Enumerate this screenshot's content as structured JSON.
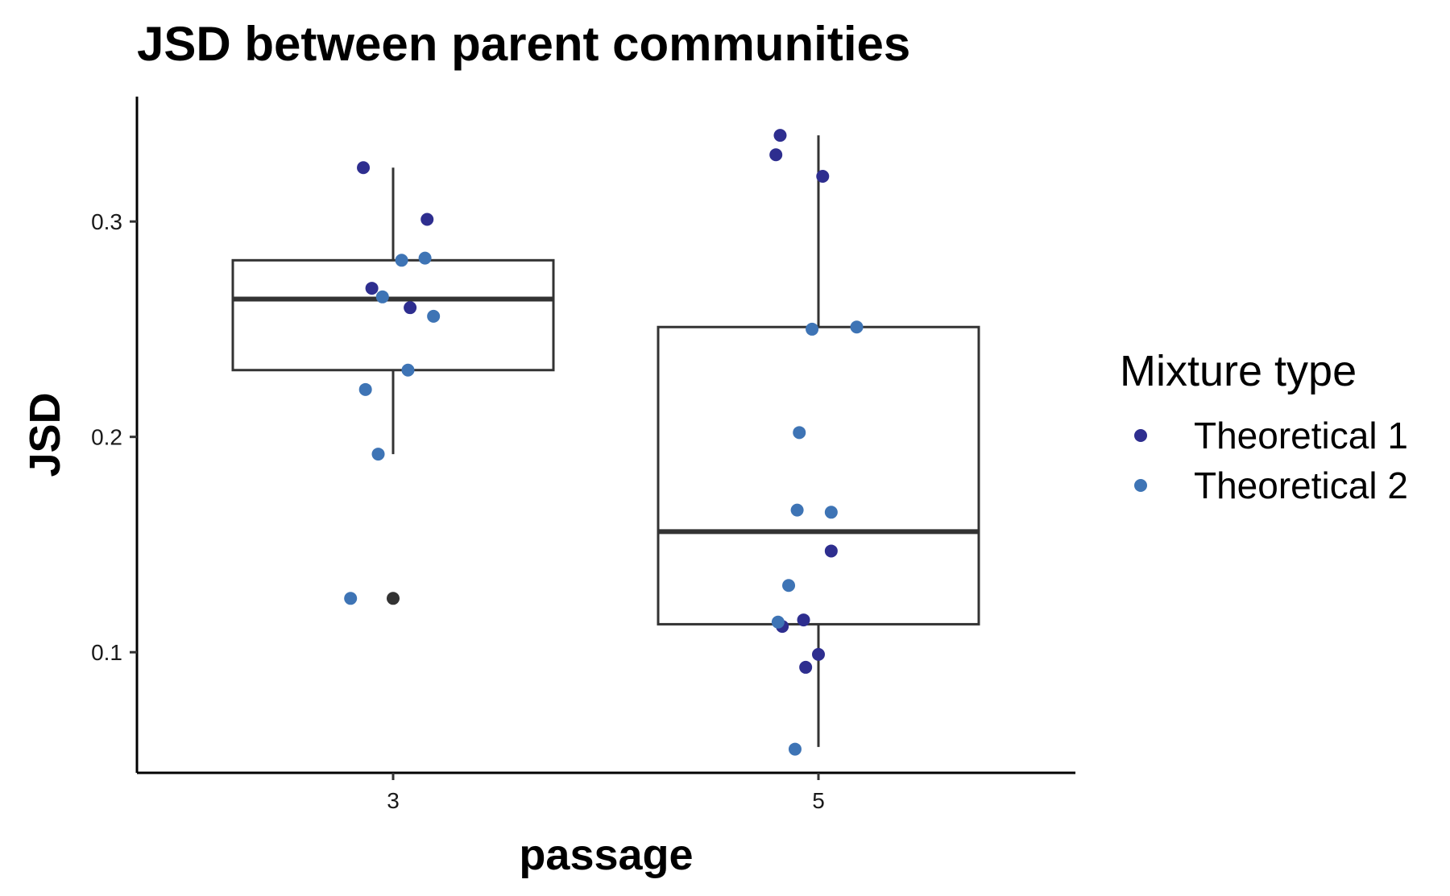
{
  "chart_data": {
    "type": "box",
    "title": "JSD between parent communities",
    "xlabel": "passage",
    "ylabel": "JSD",
    "categories": [
      "3",
      "5"
    ],
    "ylim": [
      0.044,
      0.358
    ],
    "yticks": [
      0.1,
      0.2,
      0.3
    ],
    "ytick_labels": [
      "0.1",
      "0.2",
      "0.3"
    ],
    "grid": false,
    "legend": {
      "title": "Mixture type",
      "position": "right",
      "entries": [
        {
          "name": "Theoretical 1",
          "color": "#2e2e8f"
        },
        {
          "name": "Theoretical 2",
          "color": "#3e74b5"
        }
      ]
    },
    "boxes": [
      {
        "category": "3",
        "whisker_low": 0.192,
        "q1": 0.231,
        "median": 0.264,
        "q3": 0.282,
        "whisker_high": 0.325,
        "outliers": [
          0.125
        ]
      },
      {
        "category": "5",
        "whisker_low": 0.056,
        "q1": 0.113,
        "median": 0.156,
        "q3": 0.251,
        "whisker_high": 0.34,
        "outliers": []
      }
    ],
    "outlier_color": "#333333",
    "box_line_color": "#333333",
    "series": [
      {
        "name": "Theoretical 1",
        "color": "#2e2e8f",
        "points": [
          {
            "x": "3",
            "jitter": -0.07,
            "y": 0.325
          },
          {
            "x": "3",
            "jitter": 0.08,
            "y": 0.301
          },
          {
            "x": "3",
            "jitter": -0.05,
            "y": 0.269
          },
          {
            "x": "3",
            "jitter": 0.04,
            "y": 0.26
          },
          {
            "x": "5",
            "jitter": -0.09,
            "y": 0.34
          },
          {
            "x": "5",
            "jitter": -0.1,
            "y": 0.331
          },
          {
            "x": "5",
            "jitter": 0.01,
            "y": 0.321
          },
          {
            "x": "5",
            "jitter": 0.03,
            "y": 0.147
          },
          {
            "x": "5",
            "jitter": -0.035,
            "y": 0.115
          },
          {
            "x": "5",
            "jitter": -0.085,
            "y": 0.112
          },
          {
            "x": "5",
            "jitter": 0.0,
            "y": 0.099
          },
          {
            "x": "5",
            "jitter": -0.03,
            "y": 0.093
          }
        ]
      },
      {
        "name": "Theoretical 2",
        "color": "#3e74b5",
        "points": [
          {
            "x": "3",
            "jitter": 0.075,
            "y": 0.283
          },
          {
            "x": "3",
            "jitter": 0.02,
            "y": 0.282
          },
          {
            "x": "3",
            "jitter": -0.025,
            "y": 0.265
          },
          {
            "x": "3",
            "jitter": 0.095,
            "y": 0.256
          },
          {
            "x": "3",
            "jitter": 0.035,
            "y": 0.231
          },
          {
            "x": "3",
            "jitter": -0.065,
            "y": 0.222
          },
          {
            "x": "3",
            "jitter": -0.035,
            "y": 0.192
          },
          {
            "x": "3",
            "jitter": -0.1,
            "y": 0.125
          },
          {
            "x": "5",
            "jitter": -0.015,
            "y": 0.25
          },
          {
            "x": "5",
            "jitter": 0.09,
            "y": 0.251
          },
          {
            "x": "5",
            "jitter": -0.045,
            "y": 0.202
          },
          {
            "x": "5",
            "jitter": -0.05,
            "y": 0.166
          },
          {
            "x": "5",
            "jitter": 0.03,
            "y": 0.165
          },
          {
            "x": "5",
            "jitter": -0.07,
            "y": 0.131
          },
          {
            "x": "5",
            "jitter": -0.095,
            "y": 0.114
          },
          {
            "x": "5",
            "jitter": -0.055,
            "y": 0.055
          }
        ]
      }
    ]
  }
}
